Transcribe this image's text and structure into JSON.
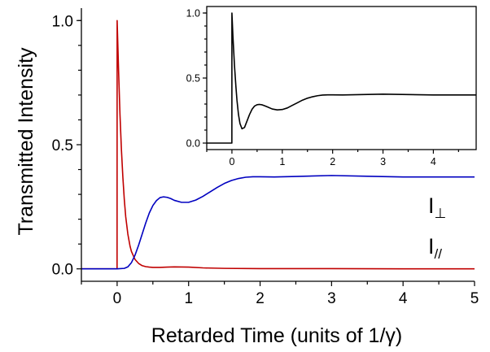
{
  "chart_data": [
    {
      "type": "line",
      "title": "",
      "xlabel": "Retarded Time (units of 1/γ)",
      "ylabel": "Transmitted Intensity",
      "xlim": [
        -0.5,
        5
      ],
      "ylim": [
        -0.05,
        1.05
      ],
      "xticks": [
        0,
        1,
        2,
        3,
        4,
        5
      ],
      "xtick_labels": [
        "0",
        "1",
        "2",
        "3",
        "4",
        "5"
      ],
      "yticks": [
        0.0,
        0.5,
        1.0
      ],
      "ytick_labels": [
        "0.0",
        "0.5",
        "1.0"
      ],
      "grid": false,
      "series": [
        {
          "label_main": "I",
          "label_sub": "//",
          "color": "#c00000",
          "x": [
            -0.5,
            -0.001,
            0,
            0.02,
            0.04,
            0.06,
            0.08,
            0.1,
            0.12,
            0.15,
            0.18,
            0.2,
            0.25,
            0.3,
            0.35,
            0.4,
            0.45,
            0.5,
            0.6,
            0.7,
            0.8,
            1.0,
            1.2,
            1.5,
            2,
            3,
            4,
            5
          ],
          "y": [
            0,
            0,
            1.0,
            0.8,
            0.62,
            0.48,
            0.37,
            0.28,
            0.21,
            0.14,
            0.092,
            0.07,
            0.038,
            0.022,
            0.013,
            0.009,
            0.007,
            0.006,
            0.006,
            0.007,
            0.008,
            0.007,
            0.004,
            0.002,
            0.001,
            0.001,
            0,
            0
          ]
        },
        {
          "label_main": "I",
          "label_sub": "⊥",
          "color": "#0000c0",
          "x": [
            -0.5,
            0,
            0.1,
            0.15,
            0.2,
            0.25,
            0.3,
            0.35,
            0.4,
            0.45,
            0.5,
            0.55,
            0.6,
            0.65,
            0.7,
            0.75,
            0.8,
            0.9,
            1.0,
            1.1,
            1.2,
            1.3,
            1.4,
            1.5,
            1.6,
            1.7,
            1.8,
            1.9,
            2.0,
            2.2,
            2.5,
            3.0,
            3.5,
            4.0,
            4.5,
            5.0
          ],
          "y": [
            0,
            0,
            0.002,
            0.008,
            0.025,
            0.055,
            0.095,
            0.14,
            0.185,
            0.225,
            0.255,
            0.275,
            0.287,
            0.29,
            0.288,
            0.283,
            0.276,
            0.268,
            0.268,
            0.277,
            0.292,
            0.31,
            0.328,
            0.344,
            0.356,
            0.364,
            0.369,
            0.371,
            0.371,
            0.37,
            0.372,
            0.376,
            0.373,
            0.37,
            0.37,
            0.37
          ]
        }
      ]
    },
    {
      "type": "line",
      "title": "",
      "xlabel": "",
      "ylabel": "",
      "xlim": [
        -0.5,
        4.85
      ],
      "ylim": [
        -0.05,
        1.05
      ],
      "xticks": [
        0,
        1,
        2,
        3,
        4
      ],
      "xtick_labels": [
        "0",
        "1",
        "2",
        "3",
        "4"
      ],
      "yticks": [
        0.0,
        0.5,
        1.0
      ],
      "ytick_labels": [
        "0.0",
        "0.5",
        "1.0"
      ],
      "grid": false,
      "series": [
        {
          "color": "#000000",
          "x": [
            -0.5,
            -0.001,
            0,
            0.02,
            0.05,
            0.08,
            0.1,
            0.13,
            0.16,
            0.2,
            0.25,
            0.3,
            0.35,
            0.4,
            0.45,
            0.5,
            0.55,
            0.6,
            0.65,
            0.7,
            0.8,
            0.9,
            1.0,
            1.1,
            1.2,
            1.3,
            1.4,
            1.5,
            1.6,
            1.7,
            1.8,
            1.9,
            2.0,
            2.2,
            2.5,
            3.0,
            3.5,
            4.0,
            4.5,
            4.85
          ],
          "y": [
            0,
            0,
            1.0,
            0.82,
            0.6,
            0.43,
            0.33,
            0.22,
            0.15,
            0.11,
            0.12,
            0.17,
            0.22,
            0.26,
            0.285,
            0.295,
            0.297,
            0.294,
            0.287,
            0.279,
            0.262,
            0.255,
            0.258,
            0.27,
            0.29,
            0.31,
            0.33,
            0.345,
            0.356,
            0.364,
            0.369,
            0.371,
            0.371,
            0.37,
            0.372,
            0.376,
            0.373,
            0.37,
            0.37,
            0.37
          ]
        }
      ]
    }
  ]
}
